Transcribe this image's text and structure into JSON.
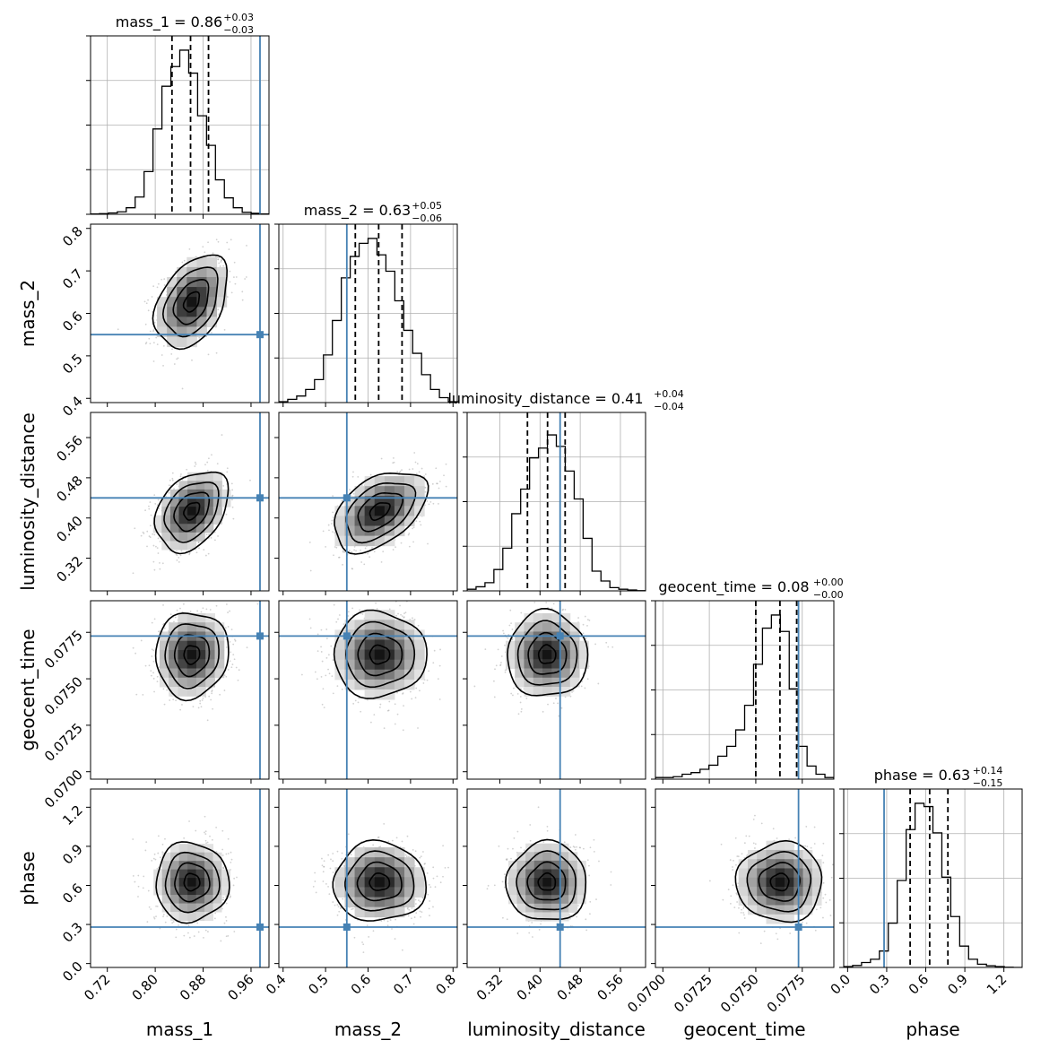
{
  "colors": {
    "truth": "#4682b4",
    "grid": "#b0b0b0",
    "hist": "#000000",
    "points": "#9a9a9a"
  },
  "chart_data": {
    "type": "corner",
    "parameters": [
      "mass_1",
      "mass_2",
      "luminosity_distance",
      "geocent_time",
      "phase"
    ],
    "axis_labels": [
      "mass_1",
      "mass_2",
      "luminosity_distance",
      "geocent_time",
      "phase"
    ],
    "titles": [
      {
        "text": "mass_1 = 0.86",
        "sup": "+0.03",
        "sub": "−0.03"
      },
      {
        "text": "mass_2 = 0.63",
        "sup": "+0.05",
        "sub": "−0.06"
      },
      {
        "text": "luminosity_distance = 0.41",
        "sup": "+0.04",
        "sub": "−0.04"
      },
      {
        "text": "geocent_time = 0.08",
        "sup": "+0.00",
        "sub": "−0.00"
      },
      {
        "text": "phase = 0.63",
        "sup": "+0.14",
        "sub": "−0.15"
      }
    ],
    "ranges": [
      [
        0.692,
        0.99
      ],
      [
        0.39,
        0.81
      ],
      [
        0.255,
        0.61
      ],
      [
        0.0696,
        0.0792
      ],
      [
        -0.03,
        1.34
      ]
    ],
    "ticks": [
      [
        "0.72",
        "0.80",
        "0.88",
        "0.96"
      ],
      [
        "0.4",
        "0.5",
        "0.6",
        "0.7",
        "0.8"
      ],
      [
        "0.32",
        "0.40",
        "0.48",
        "0.56"
      ],
      [
        "0.0700",
        "0.0725",
        "0.0750",
        "0.0775"
      ],
      [
        "0.0",
        "0.3",
        "0.6",
        "0.9",
        "1.2"
      ]
    ],
    "tick_values": [
      [
        0.72,
        0.8,
        0.88,
        0.96
      ],
      [
        0.4,
        0.5,
        0.6,
        0.7,
        0.8
      ],
      [
        0.32,
        0.4,
        0.48,
        0.56
      ],
      [
        0.07,
        0.0725,
        0.075,
        0.0775
      ],
      [
        0.0,
        0.3,
        0.6,
        0.9,
        1.2
      ]
    ],
    "truths": [
      0.975,
      0.55,
      0.44,
      0.0773,
      0.28
    ],
    "means": [
      0.861,
      0.627,
      0.414,
      0.0763,
      0.625
    ],
    "sigmas": [
      0.029,
      0.052,
      0.038,
      0.0011,
      0.145
    ],
    "quantiles": [
      [
        0.828,
        0.859,
        0.889
      ],
      [
        0.57,
        0.625,
        0.68
      ],
      [
        0.375,
        0.415,
        0.45
      ],
      [
        0.075,
        0.0763,
        0.0772
      ],
      [
        0.48,
        0.63,
        0.77
      ]
    ],
    "histograms": [
      [
        0.002,
        0.004,
        0.008,
        0.015,
        0.04,
        0.105,
        0.26,
        0.52,
        0.78,
        0.9,
        1.0,
        0.86,
        0.6,
        0.42,
        0.21,
        0.1,
        0.04,
        0.012,
        0.006,
        0.002
      ],
      [
        0.005,
        0.02,
        0.04,
        0.08,
        0.14,
        0.29,
        0.5,
        0.76,
        0.89,
        0.97,
        1.0,
        0.9,
        0.8,
        0.62,
        0.44,
        0.3,
        0.17,
        0.08,
        0.03,
        0.005
      ],
      [
        0.01,
        0.025,
        0.05,
        0.13,
        0.26,
        0.47,
        0.62,
        0.81,
        0.87,
        0.95,
        0.88,
        0.73,
        0.56,
        0.32,
        0.12,
        0.06,
        0.02,
        0.01,
        0.005,
        0.001
      ],
      [
        0.01,
        0.01,
        0.015,
        0.03,
        0.04,
        0.06,
        0.085,
        0.14,
        0.2,
        0.3,
        0.45,
        0.7,
        0.92,
        1.0,
        0.9,
        0.55,
        0.2,
        0.08,
        0.03,
        0.01
      ],
      [
        0.005,
        0.012,
        0.03,
        0.05,
        0.1,
        0.27,
        0.53,
        0.84,
        1.0,
        0.98,
        0.82,
        0.55,
        0.31,
        0.13,
        0.05,
        0.02,
        0.01,
        0.005,
        0.001,
        0.0
      ]
    ],
    "correlations": [
      [
        1,
        0.4,
        0.35,
        0.05,
        0.0
      ],
      [
        0.4,
        1,
        0.45,
        0.0,
        0.0
      ],
      [
        0.35,
        0.45,
        1,
        0.0,
        0.0
      ],
      [
        0.05,
        0.0,
        0.0,
        1,
        0.0
      ],
      [
        0.0,
        0.0,
        0.0,
        0.0,
        1
      ]
    ],
    "grid": true
  }
}
